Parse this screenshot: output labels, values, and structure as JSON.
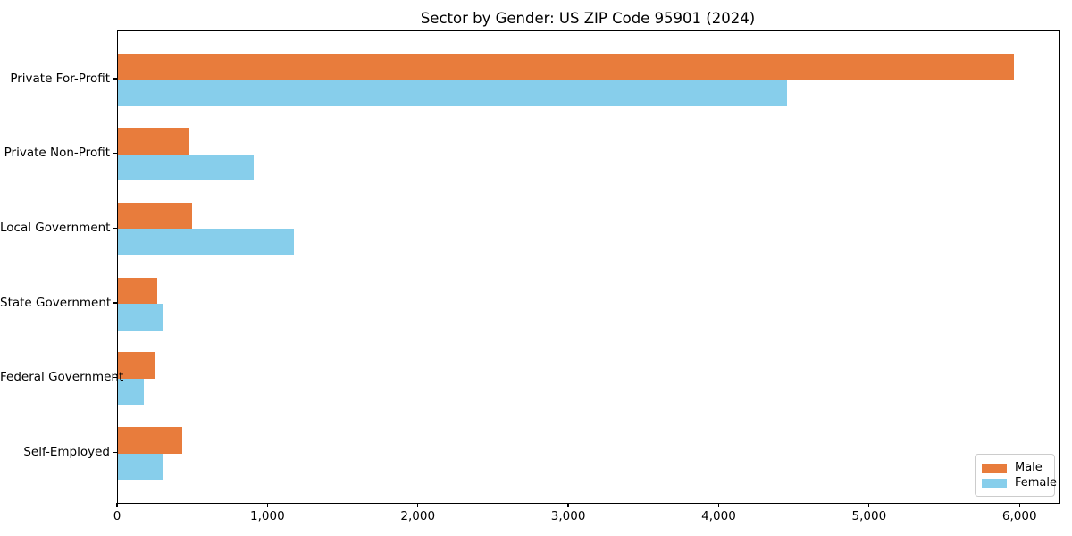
{
  "chart_data": {
    "type": "bar",
    "orientation": "horizontal",
    "title": "Sector by Gender: US ZIP Code 95901 (2024)",
    "categories": [
      "Private For-Profit",
      "Private Non-Profit",
      "Local Government",
      "State Government",
      "Federal Government",
      "Self-Employed"
    ],
    "series": [
      {
        "name": "Male",
        "color": "#e87c3c",
        "values": [
          5960,
          475,
          490,
          260,
          250,
          430
        ]
      },
      {
        "name": "Female",
        "color": "#87ceeb",
        "values": [
          4450,
          900,
          1170,
          300,
          175,
          305
        ]
      }
    ],
    "xlim": [
      0,
      6260
    ],
    "xticks": [
      0,
      1000,
      2000,
      3000,
      4000,
      5000,
      6000
    ],
    "xtick_labels": [
      "0",
      "1,000",
      "2,000",
      "3,000",
      "4,000",
      "5,000",
      "6,000"
    ],
    "xlabel": "",
    "ylabel": "",
    "grid": false,
    "legend": {
      "position": "lower right"
    }
  },
  "colors": {
    "spine": "#000000",
    "text": "#000000",
    "legend_border": "#cccccc",
    "background": "#ffffff"
  }
}
